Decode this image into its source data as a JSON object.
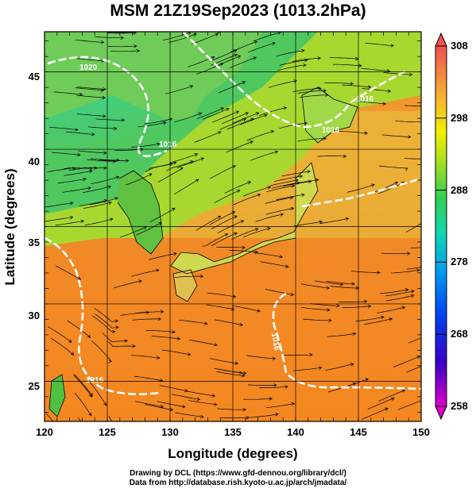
{
  "title": "MSM 21Z19Sep2023 (1013.2hPa)",
  "map": {
    "xlabel": "Longitude (degrees)",
    "ylabel": "Latitude  (degrees)",
    "xlim": [
      120,
      150
    ],
    "ylim": [
      22.4,
      47.6
    ],
    "x_ticks": [
      "120",
      "125",
      "130",
      "135",
      "140",
      "145",
      "150"
    ],
    "y_ticks": [
      "25",
      "30",
      "35",
      "40",
      "45"
    ]
  },
  "isobar_labels": [
    "1020",
    "1016",
    "1016",
    "1016",
    "1016",
    "1016"
  ],
  "colorbar": {
    "ticks": [
      "308",
      "298",
      "288",
      "278",
      "268",
      "258"
    ],
    "range": [
      258,
      308
    ]
  },
  "footer": {
    "line1": "Drawing by DCL (https://www.gfd-dennou.org/library/dcl/)",
    "line2": "Data from http://database.rish.kyoto-u.ac.jp/arch/jmadata/"
  }
}
